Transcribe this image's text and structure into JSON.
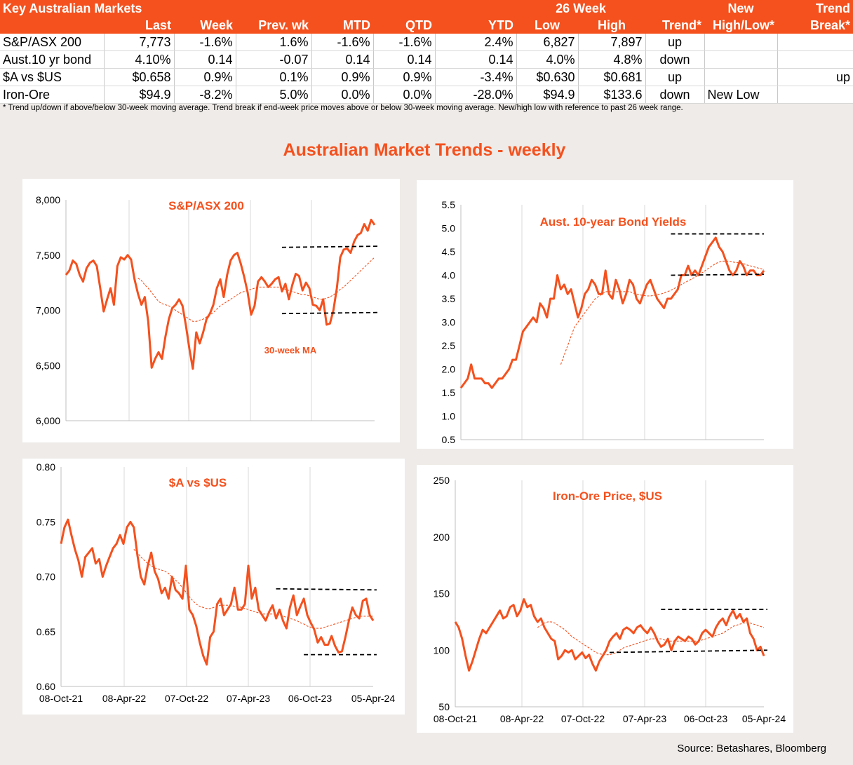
{
  "table": {
    "header_row1": {
      "title": "Key Australian Markets",
      "group": "26 Week",
      "new": "New",
      "trend": "Trend"
    },
    "header_row2": [
      "Last",
      "Week",
      "Prev. wk",
      "MTD",
      "QTD",
      "YTD",
      "Low",
      "High",
      "Trend*",
      "High/Low*",
      "Break*"
    ],
    "rows": [
      {
        "name": "S&P/ASX 200",
        "cells": [
          "7,773",
          "-1.6%",
          "1.6%",
          "-1.6%",
          "-1.6%",
          "2.4%",
          "6,827",
          "7,897",
          "up",
          "",
          ""
        ]
      },
      {
        "name": "Aust.10 yr bond",
        "cells": [
          "4.10%",
          "0.14",
          "-0.07",
          "0.14",
          "0.14",
          "0.14",
          "4.0%",
          "4.8%",
          "down",
          "",
          ""
        ]
      },
      {
        "name": "$A vs $US",
        "cells": [
          "$0.658",
          "0.9%",
          "0.1%",
          "0.9%",
          "0.9%",
          "-3.4%",
          "$0.630",
          "$0.681",
          "up",
          "",
          "up"
        ]
      },
      {
        "name": "Iron-Ore",
        "cells": [
          "$94.9",
          "-8.2%",
          "5.0%",
          "0.0%",
          "0.0%",
          "-28.0%",
          "$94.9",
          "$133.6",
          "down",
          "New Low",
          ""
        ]
      }
    ],
    "footnote": "*  Trend up/down if above/below 30-week moving average. Trend break if end-week price moves above or below 30-week moving average.  New/high low with reference to past 26 week range."
  },
  "main_title": "Australian Market Trends - weekly",
  "source": "Source:  Betashares, Bloomberg",
  "colors": {
    "accent": "#f4511e",
    "line": "#f4511e",
    "ma": "#f4511e",
    "band": "#000000",
    "grid": "#d9d9d9"
  },
  "chart_data": [
    {
      "type": "line",
      "title": "S&P/ASX 200",
      "annotation": "30-week MA",
      "ylim": [
        6000,
        8000
      ],
      "yticks": [
        "6,000",
        "6,500",
        "7,000",
        "7,500",
        "8,000"
      ],
      "ytick_values": [
        6000,
        6500,
        7000,
        7500,
        8000
      ],
      "xticks": [],
      "series": [
        {
          "key": "price",
          "values": [
            7320,
            7360,
            7450,
            7420,
            7320,
            7260,
            7380,
            7430,
            7450,
            7400,
            7200,
            6990,
            7100,
            7200,
            7050,
            7400,
            7480,
            7460,
            7500,
            7460,
            7280,
            7150,
            7050,
            7120,
            6900,
            6480,
            6560,
            6620,
            6560,
            6760,
            6920,
            7020,
            7050,
            7100,
            7040,
            6860,
            6650,
            6470,
            6800,
            6700,
            6800,
            6920,
            6970,
            7050,
            7200,
            7280,
            7120,
            7320,
            7450,
            7500,
            7520,
            7420,
            7300,
            7160,
            6960,
            7040,
            7260,
            7300,
            7260,
            7210,
            7240,
            7280,
            7300,
            7170,
            7240,
            7100,
            7230,
            7330,
            7310,
            7180,
            7250,
            7200,
            7050,
            7040,
            7000,
            7100,
            6870,
            6880,
            7000,
            7200,
            7480,
            7550,
            7560,
            7520,
            7620,
            7680,
            7700,
            7780,
            7720,
            7820,
            7773
          ]
        },
        {
          "key": "ma",
          "values": [
            null,
            null,
            null,
            null,
            null,
            null,
            null,
            null,
            null,
            null,
            null,
            null,
            null,
            null,
            null,
            null,
            null,
            null,
            null,
            null,
            null,
            7290,
            7270,
            7230,
            7200,
            7160,
            7120,
            7080,
            7060,
            7050,
            7040,
            7020,
            7000,
            6980,
            6960,
            6940,
            6920,
            6900,
            6900,
            6910,
            6920,
            6940,
            6960,
            6980,
            7010,
            7040,
            7060,
            7080,
            7100,
            7120,
            7140,
            7160,
            7170,
            7180,
            7190,
            7200,
            7210,
            7210,
            7210,
            7210,
            7210,
            7210,
            7210,
            7200,
            7190,
            7180,
            7170,
            7160,
            7150,
            7140,
            7140,
            7130,
            7120,
            7110,
            7100,
            7100,
            7110,
            7120,
            7140,
            7160,
            7190,
            7210,
            7240,
            7270,
            7300,
            7330,
            7360,
            7390,
            7420,
            7450,
            7480
          ]
        }
      ],
      "bands": [
        {
          "from": 63,
          "to": 91,
          "y1": 7570,
          "y2": 7580
        },
        {
          "from": 63,
          "to": 91,
          "y1": 6970,
          "y2": 6980
        }
      ]
    },
    {
      "type": "line",
      "title": "Aust. 10-year Bond Yields",
      "ylim": [
        0.5,
        5.5
      ],
      "yticks": [
        "0.5",
        "1.0",
        "1.5",
        "2.0",
        "2.5",
        "3.0",
        "3.5",
        "4.0",
        "4.5",
        "5.0",
        "5.5"
      ],
      "ytick_values": [
        0.5,
        1.0,
        1.5,
        2.0,
        2.5,
        3.0,
        3.5,
        4.0,
        4.5,
        5.0,
        5.5
      ],
      "xticks": [],
      "series": [
        {
          "key": "price",
          "values": [
            1.6,
            1.7,
            1.8,
            2.1,
            1.8,
            1.8,
            1.8,
            1.7,
            1.7,
            1.6,
            1.7,
            1.8,
            1.8,
            1.9,
            2.0,
            2.2,
            2.2,
            2.5,
            2.8,
            2.9,
            3.0,
            3.1,
            3.0,
            3.4,
            3.3,
            3.1,
            3.5,
            3.5,
            4.0,
            3.7,
            3.8,
            3.6,
            3.7,
            3.4,
            3.1,
            3.3,
            3.6,
            3.7,
            3.9,
            3.8,
            3.6,
            3.6,
            4.1,
            3.6,
            3.5,
            3.9,
            3.7,
            3.4,
            3.6,
            3.9,
            3.8,
            3.5,
            3.4,
            3.6,
            3.8,
            3.9,
            3.7,
            3.5,
            3.4,
            3.3,
            3.5,
            3.5,
            3.6,
            3.7,
            4.0,
            4.0,
            4.2,
            4.0,
            4.1,
            4.0,
            4.2,
            4.4,
            4.6,
            4.7,
            4.8,
            4.6,
            4.5,
            4.3,
            4.1,
            4.0,
            4.1,
            4.3,
            4.2,
            4.0,
            4.1,
            4.1,
            4.0,
            4.0,
            4.1
          ]
        },
        {
          "key": "ma",
          "values": [
            null,
            null,
            null,
            null,
            null,
            null,
            null,
            null,
            null,
            null,
            null,
            null,
            null,
            null,
            null,
            null,
            null,
            null,
            null,
            null,
            null,
            null,
            null,
            null,
            null,
            null,
            null,
            null,
            null,
            2.1,
            2.3,
            2.5,
            2.7,
            2.9,
            3.0,
            3.1,
            3.2,
            3.3,
            3.4,
            3.5,
            3.55,
            3.6,
            3.65,
            3.65,
            3.65,
            3.65,
            3.65,
            3.65,
            3.65,
            3.65,
            3.62,
            3.6,
            3.58,
            3.57,
            3.56,
            3.56,
            3.57,
            3.58,
            3.6,
            3.62,
            3.65,
            3.68,
            3.72,
            3.76,
            3.8,
            3.84,
            3.88,
            3.92,
            3.96,
            4.0,
            4.05,
            4.1,
            4.15,
            4.2,
            4.25,
            4.28,
            4.3,
            4.3,
            4.3,
            4.28,
            4.27,
            4.26,
            4.25,
            4.22,
            4.2,
            4.18,
            4.16,
            4.14,
            4.12
          ]
        }
      ],
      "bands": [
        {
          "from": 61,
          "to": 88,
          "y1": 4.88,
          "y2": 4.88
        },
        {
          "from": 61,
          "to": 88,
          "y1": 4.0,
          "y2": 4.02
        }
      ]
    },
    {
      "type": "line",
      "title": "$A vs $US",
      "ylim": [
        0.6,
        0.8
      ],
      "yticks": [
        "0.60",
        "0.65",
        "0.70",
        "0.75",
        "0.80"
      ],
      "ytick_values": [
        0.6,
        0.65,
        0.7,
        0.75,
        0.8
      ],
      "xticks": [
        "08-Oct-21",
        "08-Apr-22",
        "07-Oct-22",
        "07-Apr-23",
        "06-Oct-23",
        "05-Apr-24"
      ],
      "series": [
        {
          "key": "price",
          "values": [
            0.73,
            0.745,
            0.752,
            0.738,
            0.725,
            0.715,
            0.7,
            0.718,
            0.722,
            0.726,
            0.712,
            0.716,
            0.7,
            0.71,
            0.718,
            0.726,
            0.73,
            0.738,
            0.73,
            0.745,
            0.75,
            0.745,
            0.72,
            0.7,
            0.693,
            0.71,
            0.722,
            0.705,
            0.698,
            0.685,
            0.69,
            0.68,
            0.7,
            0.688,
            0.685,
            0.68,
            0.71,
            0.67,
            0.665,
            0.655,
            0.64,
            0.628,
            0.62,
            0.645,
            0.65,
            0.675,
            0.68,
            0.665,
            0.67,
            0.675,
            0.69,
            0.67,
            0.67,
            0.675,
            0.71,
            0.68,
            0.69,
            0.67,
            0.665,
            0.66,
            0.668,
            0.674,
            0.662,
            0.67,
            0.66,
            0.653,
            0.672,
            0.683,
            0.665,
            0.673,
            0.68,
            0.665,
            0.658,
            0.652,
            0.64,
            0.645,
            0.638,
            0.638,
            0.646,
            0.637,
            0.631,
            0.632,
            0.645,
            0.66,
            0.672,
            0.665,
            0.662,
            0.678,
            0.68,
            0.665,
            0.66
          ]
        },
        {
          "key": "ma",
          "values": [
            null,
            null,
            null,
            null,
            null,
            null,
            null,
            null,
            null,
            null,
            null,
            null,
            null,
            null,
            null,
            null,
            null,
            null,
            null,
            null,
            null,
            0.725,
            0.722,
            0.718,
            0.715,
            0.712,
            0.71,
            0.708,
            0.707,
            0.706,
            0.705,
            0.703,
            0.7,
            0.697,
            0.694,
            0.69,
            0.686,
            0.682,
            0.678,
            0.675,
            0.673,
            0.672,
            0.671,
            0.671,
            0.672,
            0.673,
            0.674,
            0.674,
            0.674,
            0.674,
            0.673,
            0.673,
            0.672,
            0.671,
            0.67,
            0.669,
            0.668,
            0.667,
            0.666,
            0.666,
            0.666,
            0.666,
            0.666,
            0.665,
            0.664,
            0.663,
            0.662,
            0.661,
            0.66,
            0.658,
            0.657,
            0.655,
            0.654,
            0.653,
            0.653,
            0.653,
            0.654,
            0.655,
            0.656,
            0.657,
            0.658,
            0.659,
            0.66,
            0.661,
            0.662,
            0.663,
            0.664,
            0.664,
            0.664,
            0.664,
            0.664
          ]
        }
      ],
      "bands": [
        {
          "from": 62,
          "to": 91,
          "y1": 0.689,
          "y2": 0.688
        },
        {
          "from": 70,
          "to": 91,
          "y1": 0.629,
          "y2": 0.629
        }
      ]
    },
    {
      "type": "line",
      "title": "Iron-Ore Price, $US",
      "ylim": [
        50,
        250
      ],
      "yticks": [
        "50",
        "100",
        "150",
        "200",
        "250"
      ],
      "ytick_values": [
        50,
        100,
        150,
        200,
        250
      ],
      "xticks": [
        "08-Oct-21",
        "08-Apr-22",
        "07-Oct-22",
        "07-Apr-23",
        "06-Oct-23",
        "05-Apr-24"
      ],
      "series": [
        {
          "key": "price",
          "values": [
            125,
            120,
            110,
            95,
            82,
            90,
            100,
            110,
            118,
            115,
            120,
            125,
            130,
            135,
            128,
            130,
            138,
            140,
            130,
            135,
            145,
            138,
            140,
            130,
            125,
            128,
            120,
            115,
            110,
            108,
            92,
            95,
            100,
            98,
            100,
            92,
            95,
            98,
            93,
            96,
            88,
            82,
            90,
            95,
            100,
            108,
            112,
            115,
            110,
            118,
            120,
            118,
            115,
            120,
            122,
            118,
            115,
            120,
            115,
            108,
            103,
            105,
            110,
            100,
            108,
            112,
            110,
            108,
            112,
            110,
            105,
            108,
            115,
            118,
            115,
            112,
            120,
            125,
            128,
            122,
            130,
            135,
            128,
            132,
            125,
            128,
            115,
            110,
            100,
            103,
            94.9
          ]
        },
        {
          "key": "ma",
          "values": [
            null,
            null,
            null,
            null,
            null,
            null,
            null,
            null,
            null,
            null,
            null,
            null,
            null,
            null,
            null,
            null,
            null,
            null,
            null,
            null,
            null,
            null,
            null,
            null,
            120,
            122,
            124,
            125,
            125,
            124,
            122,
            120,
            118,
            115,
            112,
            110,
            108,
            106,
            104,
            102,
            100,
            98,
            97,
            96,
            96,
            96,
            97,
            98,
            100,
            102,
            103,
            104,
            105,
            106,
            107,
            108,
            109,
            110,
            110,
            110,
            110,
            109,
            108,
            108,
            108,
            108,
            108,
            108,
            108,
            108,
            108,
            108,
            109,
            110,
            111,
            112,
            113,
            114,
            115,
            117,
            119,
            121,
            122,
            123,
            124,
            124,
            124,
            123,
            122,
            121,
            120
          ]
        }
      ],
      "bands": [
        {
          "from": 60,
          "to": 91,
          "y1": 136,
          "y2": 136
        },
        {
          "from": 45,
          "to": 91,
          "y1": 98,
          "y2": 100
        }
      ]
    }
  ]
}
